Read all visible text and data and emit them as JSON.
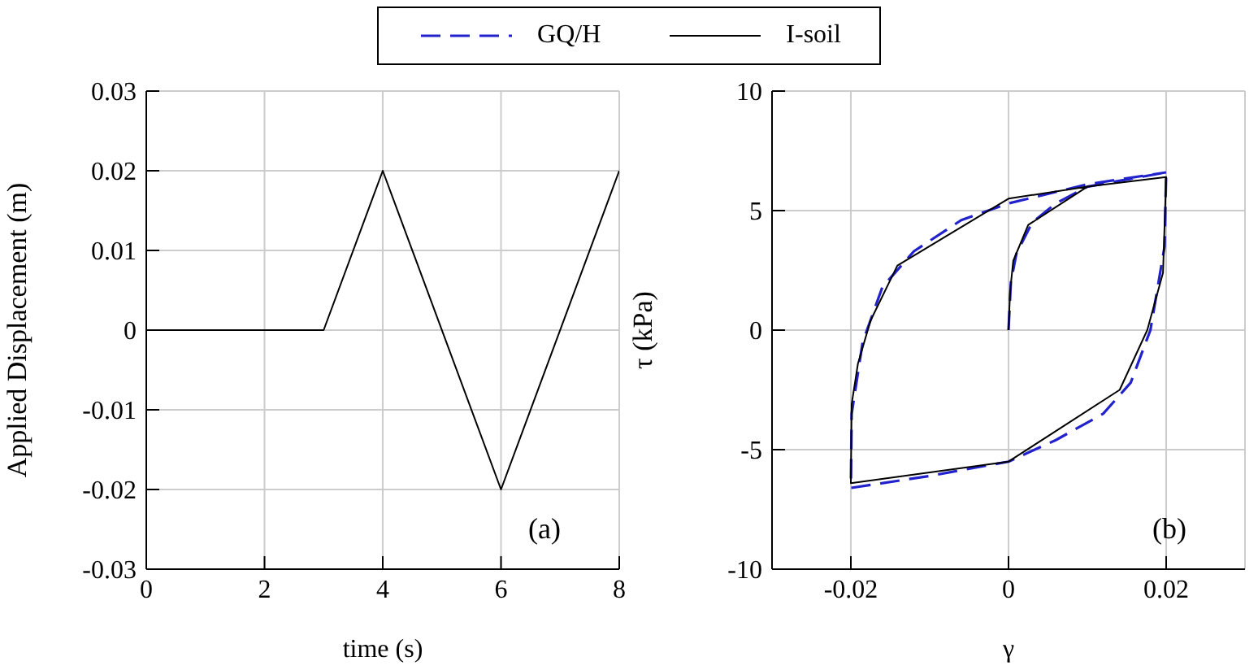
{
  "chart_data": [
    {
      "type": "line",
      "xlabel": "time (s)",
      "ylabel": "Applied Displacement (m)",
      "xlim": [
        0,
        8
      ],
      "xticks": [
        0,
        2,
        4,
        6,
        8
      ],
      "ylim": [
        -0.03,
        0.03
      ],
      "yticks": [
        -0.03,
        -0.02,
        -0.01,
        0,
        0.01,
        0.02,
        0.03
      ],
      "grid": true,
      "annotations": [
        "(a)"
      ],
      "series": [
        {
          "color": "#000000",
          "line_style": "solid",
          "x": [
            0,
            3,
            4,
            6,
            8
          ],
          "values": [
            0,
            0,
            0.02,
            -0.02,
            0.02
          ]
        }
      ]
    },
    {
      "type": "line",
      "xlabel": "γ",
      "ylabel": "τ (kPa)",
      "xlim": [
        -0.03,
        0.03
      ],
      "xticks": [
        -0.02,
        0,
        0.02
      ],
      "ylim": [
        -10,
        10
      ],
      "yticks": [
        -10,
        -5,
        0,
        5,
        10
      ],
      "grid": true,
      "legend": "top",
      "annotations": [
        "(b)"
      ],
      "series": [
        {
          "name": "GQ/H",
          "color": "#2222cc",
          "line_style": "dashed",
          "x": [
            0,
            0.0003,
            0.001,
            0.003,
            0.006,
            0.01,
            0.02,
            0.0198,
            0.018,
            0.0155,
            0.012,
            0.006,
            0,
            -0.01,
            -0.02,
            -0.0199,
            -0.0185,
            -0.016,
            -0.012,
            -0.006,
            0,
            0.01,
            0.02
          ],
          "values": [
            0,
            2.0,
            3.2,
            4.5,
            5.3,
            6.0,
            6.6,
            3.5,
            0,
            -2.2,
            -3.5,
            -4.6,
            -5.5,
            -6.1,
            -6.6,
            -3.5,
            -0.5,
            1.8,
            3.3,
            4.6,
            5.3,
            6.1,
            6.6
          ]
        },
        {
          "name": "I-soil",
          "color": "#000000",
          "line_style": "solid",
          "x": [
            0,
            0.0002,
            0.0006,
            0.0025,
            0.01,
            0.02,
            0.0196,
            0.0176,
            0.0141,
            0,
            -0.02,
            -0.0199,
            -0.0191,
            -0.0175,
            -0.0141,
            0,
            0.01
          ],
          "values": [
            0,
            1.6,
            2.9,
            4.4,
            6.0,
            6.4,
            2.4,
            0,
            -2.5,
            -5.5,
            -6.4,
            -3.1,
            -1.4,
            0.4,
            2.7,
            5.5,
            6.0
          ]
        }
      ]
    }
  ]
}
